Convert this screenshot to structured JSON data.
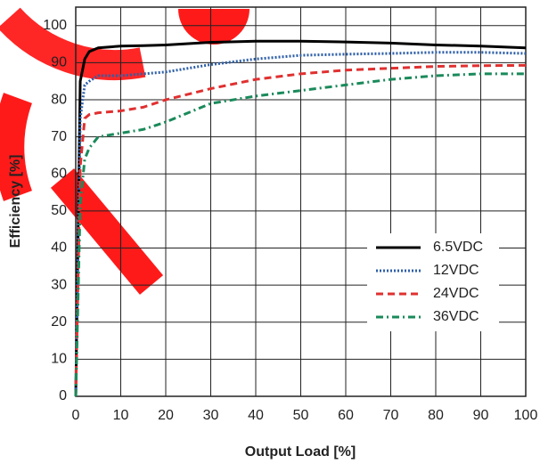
{
  "chart_data": {
    "type": "line",
    "xlabel": "Output Load [%]",
    "ylabel": "Efficiency [%]",
    "x": [
      0,
      1,
      2,
      3,
      5,
      10,
      15,
      20,
      30,
      40,
      50,
      60,
      70,
      80,
      90,
      100
    ],
    "series": [
      {
        "name": "6.5VDC",
        "color": "#000000",
        "dash": "solid",
        "values": [
          0,
          85,
          91,
          93,
          94,
          94.5,
          94.6,
          94.8,
          95.5,
          95.8,
          95.8,
          95.6,
          95.3,
          94.8,
          94.5,
          94
        ]
      },
      {
        "name": "12VDC",
        "color": "#2e5fa8",
        "dash": "dotted",
        "values": [
          0,
          75,
          84,
          85,
          86.5,
          86.5,
          87,
          87.5,
          89.5,
          91,
          92,
          92.3,
          92.5,
          92.8,
          92.8,
          92.5
        ]
      },
      {
        "name": "24VDC",
        "color": "#e03030",
        "dash": "dashed",
        "values": [
          0,
          62,
          75,
          76,
          76.5,
          77,
          78,
          80,
          83,
          85.5,
          87,
          88,
          88.5,
          89,
          89.2,
          89.3
        ]
      },
      {
        "name": "36VDC",
        "color": "#1a8a5a",
        "dash": "dashdot",
        "values": [
          0,
          52,
          64,
          67,
          70,
          71,
          72,
          74,
          79,
          81,
          82.5,
          84,
          85.5,
          86.5,
          87,
          87
        ]
      }
    ],
    "xlim": [
      0,
      100
    ],
    "xticks": [
      0,
      10,
      20,
      30,
      40,
      50,
      60,
      70,
      80,
      90,
      100
    ],
    "ylim": [
      0,
      105
    ],
    "yticks": [
      0,
      10,
      20,
      30,
      40,
      50,
      60,
      70,
      80,
      90,
      100
    ],
    "grid": true
  }
}
